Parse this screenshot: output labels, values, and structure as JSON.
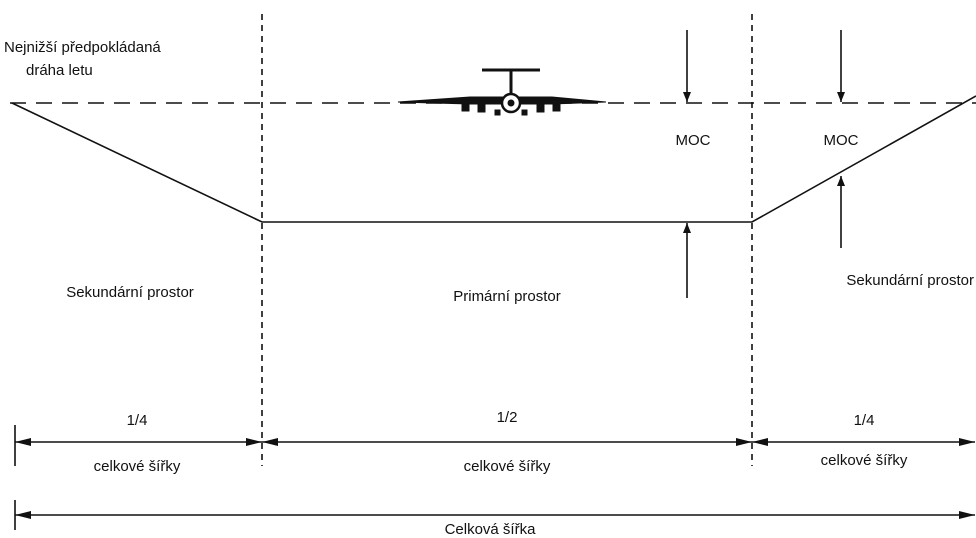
{
  "flight_path_label": [
    "Nejnižší předpokládaná",
    "dráha letu"
  ],
  "moc_labels": [
    "MOC",
    "MOC"
  ],
  "areas": [
    {
      "name": "Sekundární prostor",
      "fraction": "1/4",
      "width_label": "celkové šířky"
    },
    {
      "name": "Primární prostor",
      "fraction": "1/2",
      "width_label": "celkové šířky"
    },
    {
      "name": "Sekundární prostor",
      "fraction": "1/4",
      "width_label": "celkové šířky"
    }
  ],
  "total_width_label": "Celková šířka"
}
